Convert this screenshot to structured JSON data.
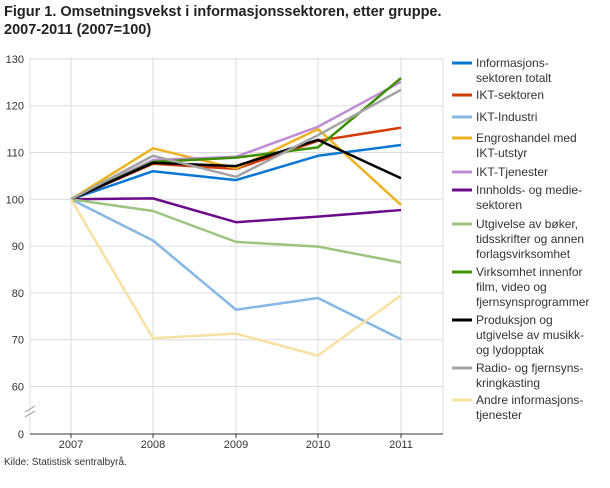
{
  "chart_data": {
    "type": "line",
    "title": "Figur 1. Omsetningsvekst i informasjonssektoren, etter gruppe.",
    "subtitle": "2007-2011 (2007=100)",
    "source": "Kilde: Statistisk sentralbyrå.",
    "x": [
      "2007",
      "2008",
      "2009",
      "2010",
      "2011"
    ],
    "yticks": [
      0,
      60,
      70,
      80,
      90,
      100,
      110,
      120,
      130
    ],
    "ylim": [
      60,
      130
    ],
    "axis_break": true,
    "grid": true,
    "legend_position": "right",
    "series": [
      {
        "name": "Informasjons- sektoren totalt",
        "lines": [
          "Informasjons-",
          "sektoren totalt"
        ],
        "color": "#0a78d2",
        "values": [
          100,
          106.0,
          104.1,
          109.3,
          111.6
        ]
      },
      {
        "name": "IKT-sektoren",
        "lines": [
          "IKT-sektoren"
        ],
        "color": "#d33c06",
        "values": [
          100,
          107.6,
          106.5,
          112.5,
          115.3
        ]
      },
      {
        "name": "IKT-Industri",
        "lines": [
          "IKT-Industri"
        ],
        "color": "#86b8e6",
        "values": [
          100,
          91.2,
          76.4,
          78.9,
          70.1
        ]
      },
      {
        "name": "Engroshandel med IKT-utstyr",
        "lines": [
          "Engroshandel med",
          "IKT-utstyr"
        ],
        "color": "#edb220",
        "values": [
          100,
          110.9,
          106.6,
          115.0,
          98.8
        ]
      },
      {
        "name": "IKT-Tjenester",
        "lines": [
          "IKT-Tjenester"
        ],
        "color": "#c08cd6",
        "values": [
          100,
          108.4,
          109.1,
          115.5,
          125.1
        ]
      },
      {
        "name": "Innholds- og medie- sektoren",
        "lines": [
          "Innholds- og medie-",
          "sektoren"
        ],
        "color": "#6c0c8c",
        "values": [
          100,
          100.2,
          95.1,
          96.3,
          97.7
        ]
      },
      {
        "name": "Utgivelse av bøker, tidsskrifter og annen forlagsvirksomhet",
        "lines": [
          "Utgivelse av bøker,",
          "tidsskrifter og annen",
          "forlagsvirksomhet"
        ],
        "color": "#9cc47e",
        "values": [
          100,
          97.5,
          90.9,
          89.9,
          86.5
        ]
      },
      {
        "name": "Virksomhet innenfor film, video og fjernsynsprogrammer",
        "lines": [
          "Virksomhet innenfor",
          "film, video og",
          "fjernsynsprogrammer"
        ],
        "color": "#3d8f00",
        "values": [
          100,
          108.0,
          108.9,
          111.1,
          125.9
        ]
      },
      {
        "name": "Produksjon og utgivelse av musikk- og lydopptak",
        "lines": [
          "Produksjon og",
          "utgivelse av musikk-",
          "og lydopptak"
        ],
        "color": "#000000",
        "values": [
          100,
          107.8,
          107.1,
          112.7,
          104.5
        ]
      },
      {
        "name": "Radio- og fjernsyns- kringkasting",
        "lines": [
          "Radio- og fjernsyns-",
          "kringkasting"
        ],
        "color": "#a3a3a3",
        "values": [
          100,
          109.3,
          104.8,
          113.7,
          123.4
        ]
      },
      {
        "name": "Andre informasjons- tjenester",
        "lines": [
          "Andre informasjons-",
          "tjenester"
        ],
        "color": "#f8e0a2",
        "values": [
          100,
          70.3,
          71.3,
          66.6,
          79.5
        ]
      }
    ]
  }
}
